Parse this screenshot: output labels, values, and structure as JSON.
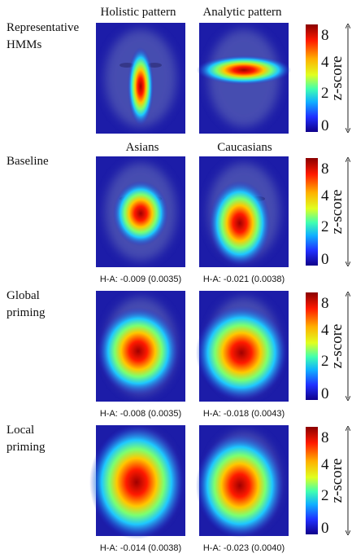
{
  "column_headers": [
    "Holistic pattern",
    "Analytic pattern"
  ],
  "group_headers": [
    "Asians",
    "Caucasians"
  ],
  "rows": [
    {
      "label": [
        "Representative",
        "HMMs"
      ]
    },
    {
      "label": [
        "Baseline"
      ],
      "notes": [
        "H-A: -0.009 (0.0035)",
        "H-A: -0.021 (0.0038)"
      ]
    },
    {
      "label": [
        "Global",
        "priming"
      ],
      "notes": [
        "H-A: -0.008 (0.0035)",
        "H-A: -0.018 (0.0043)"
      ]
    },
    {
      "label": [
        "Local",
        "priming"
      ],
      "notes": [
        "H-A: -0.014 (0.0038)",
        "H-A: -0.023 (0.0040)"
      ]
    }
  ],
  "colorbar": {
    "label": "z-score",
    "ticks": [
      8,
      4,
      2,
      0
    ]
  }
}
